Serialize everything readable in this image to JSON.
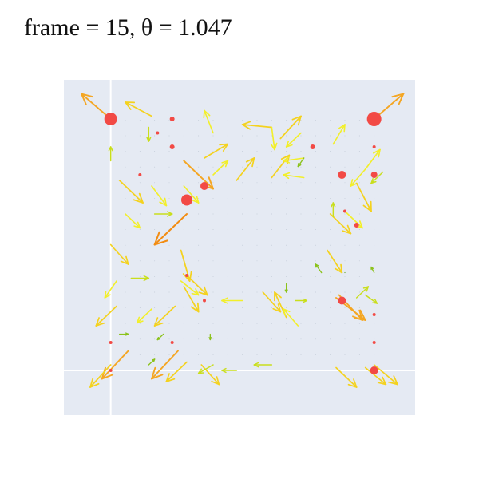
{
  "title": "frame = 15, θ = 1.047",
  "colors": {
    "plot_bg": "#e5eaf3",
    "zero_line": "#ffffff",
    "point": "#f24a45",
    "arrow_scale": [
      "#5aa51c",
      "#8bc21b",
      "#c9de1c",
      "#f2ef2a",
      "#f4d21f",
      "#f4a623",
      "#f28c12"
    ]
  },
  "chart_data": {
    "type": "quiver",
    "title": "frame = 15, θ = 1.047",
    "xlim": [
      -0.16,
      1.04
    ],
    "ylim": [
      -0.16,
      1.04
    ],
    "grid": false,
    "zero_lines": true,
    "points": [
      {
        "x": 0.0,
        "y": 0.9,
        "size": 8
      },
      {
        "x": 0.9,
        "y": 0.9,
        "size": 9
      },
      {
        "x": 0.21,
        "y": 0.9,
        "size": 3
      },
      {
        "x": 0.16,
        "y": 0.85,
        "size": 2
      },
      {
        "x": 0.21,
        "y": 0.8,
        "size": 3
      },
      {
        "x": 0.1,
        "y": 0.7,
        "size": 2
      },
      {
        "x": 0.32,
        "y": 0.66,
        "size": 5
      },
      {
        "x": 0.26,
        "y": 0.61,
        "size": 7
      },
      {
        "x": 0.69,
        "y": 0.8,
        "size": 3
      },
      {
        "x": 0.9,
        "y": 0.8,
        "size": 2
      },
      {
        "x": 0.79,
        "y": 0.7,
        "size": 5
      },
      {
        "x": 0.9,
        "y": 0.7,
        "size": 4
      },
      {
        "x": 0.8,
        "y": 0.57,
        "size": 2
      },
      {
        "x": 0.84,
        "y": 0.52,
        "size": 3
      },
      {
        "x": 0.26,
        "y": 0.34,
        "size": 2
      },
      {
        "x": 0.32,
        "y": 0.25,
        "size": 2
      },
      {
        "x": 0.79,
        "y": 0.25,
        "size": 5
      },
      {
        "x": 0.9,
        "y": 0.2,
        "size": 2
      },
      {
        "x": 0.9,
        "y": 0.1,
        "size": 2
      },
      {
        "x": 0.0,
        "y": 0.1,
        "size": 2
      },
      {
        "x": 0.21,
        "y": 0.1,
        "size": 2
      },
      {
        "x": 0.0,
        "y": 0.0,
        "size": 2
      },
      {
        "x": 0.9,
        "y": 0.0,
        "size": 5
      }
    ],
    "arrows": [
      {
        "x": 0.0,
        "y": 0.9,
        "u": -0.1,
        "v": 0.09
      },
      {
        "x": 0.9,
        "y": 0.9,
        "u": 0.1,
        "v": 0.09
      },
      {
        "x": 0.14,
        "y": 0.91,
        "u": -0.09,
        "v": 0.05
      },
      {
        "x": 0.13,
        "y": 0.87,
        "u": 0.0,
        "v": -0.05
      },
      {
        "x": 0.35,
        "y": 0.85,
        "u": -0.03,
        "v": 0.08
      },
      {
        "x": 0.55,
        "y": 0.87,
        "u": -0.1,
        "v": 0.01
      },
      {
        "x": 0.55,
        "y": 0.87,
        "u": 0.01,
        "v": -0.08
      },
      {
        "x": 0.58,
        "y": 0.83,
        "u": 0.07,
        "v": 0.08
      },
      {
        "x": 0.65,
        "y": 0.85,
        "u": -0.05,
        "v": -0.05
      },
      {
        "x": 0.76,
        "y": 0.81,
        "u": 0.04,
        "v": 0.07
      },
      {
        "x": 0.0,
        "y": 0.75,
        "u": 0.0,
        "v": 0.05
      },
      {
        "x": 0.32,
        "y": 0.76,
        "u": 0.08,
        "v": 0.05
      },
      {
        "x": 0.25,
        "y": 0.75,
        "u": 0.1,
        "v": -0.1
      },
      {
        "x": 0.35,
        "y": 0.7,
        "u": 0.05,
        "v": 0.05
      },
      {
        "x": 0.43,
        "y": 0.68,
        "u": 0.06,
        "v": 0.08
      },
      {
        "x": 0.55,
        "y": 0.69,
        "u": 0.06,
        "v": 0.08
      },
      {
        "x": 0.66,
        "y": 0.76,
        "u": -0.07,
        "v": -0.01
      },
      {
        "x": 0.66,
        "y": 0.76,
        "u": -0.02,
        "v": -0.03
      },
      {
        "x": 0.87,
        "y": 0.72,
        "u": -0.05,
        "v": -0.06
      },
      {
        "x": 0.87,
        "y": 0.72,
        "u": 0.05,
        "v": 0.07
      },
      {
        "x": 0.93,
        "y": 0.71,
        "u": -0.04,
        "v": -0.04
      },
      {
        "x": 0.66,
        "y": 0.69,
        "u": -0.07,
        "v": 0.01
      },
      {
        "x": 0.03,
        "y": 0.68,
        "u": 0.08,
        "v": -0.08
      },
      {
        "x": 0.14,
        "y": 0.66,
        "u": 0.05,
        "v": -0.07
      },
      {
        "x": 0.25,
        "y": 0.66,
        "u": 0.05,
        "v": -0.06
      },
      {
        "x": 0.15,
        "y": 0.56,
        "u": 0.06,
        "v": 0.0
      },
      {
        "x": 0.05,
        "y": 0.56,
        "u": 0.05,
        "v": -0.05
      },
      {
        "x": 0.26,
        "y": 0.56,
        "u": -0.11,
        "v": -0.11
      },
      {
        "x": 0.75,
        "y": 0.56,
        "u": 0.07,
        "v": -0.07
      },
      {
        "x": 0.8,
        "y": 0.57,
        "u": 0.06,
        "v": -0.06
      },
      {
        "x": 0.76,
        "y": 0.55,
        "u": 0.0,
        "v": 0.05
      },
      {
        "x": 0.84,
        "y": 0.67,
        "u": 0.05,
        "v": -0.1
      },
      {
        "x": 0.0,
        "y": 0.45,
        "u": 0.06,
        "v": -0.07
      },
      {
        "x": 0.24,
        "y": 0.43,
        "u": 0.03,
        "v": -0.11
      },
      {
        "x": 0.74,
        "y": 0.43,
        "u": 0.05,
        "v": -0.08
      },
      {
        "x": 0.72,
        "y": 0.35,
        "u": -0.02,
        "v": 0.03
      },
      {
        "x": 0.9,
        "y": 0.35,
        "u": -0.01,
        "v": 0.02
      },
      {
        "x": 0.8,
        "y": 0.35,
        "u": 0.0,
        "v": 0.0
      },
      {
        "x": 0.07,
        "y": 0.33,
        "u": 0.06,
        "v": 0.0
      },
      {
        "x": 0.02,
        "y": 0.32,
        "u": -0.04,
        "v": -0.06
      },
      {
        "x": 0.26,
        "y": 0.34,
        "u": 0.07,
        "v": -0.07
      },
      {
        "x": 0.24,
        "y": 0.32,
        "u": 0.06,
        "v": -0.05
      },
      {
        "x": 0.25,
        "y": 0.3,
        "u": 0.05,
        "v": -0.09
      },
      {
        "x": 0.6,
        "y": 0.31,
        "u": 0.0,
        "v": -0.03
      },
      {
        "x": 0.52,
        "y": 0.28,
        "u": 0.06,
        "v": -0.07
      },
      {
        "x": 0.45,
        "y": 0.25,
        "u": -0.07,
        "v": 0.0
      },
      {
        "x": 0.63,
        "y": 0.25,
        "u": 0.04,
        "v": 0.0
      },
      {
        "x": 0.02,
        "y": 0.23,
        "u": -0.07,
        "v": -0.07
      },
      {
        "x": 0.14,
        "y": 0.22,
        "u": -0.05,
        "v": -0.05
      },
      {
        "x": 0.22,
        "y": 0.23,
        "u": -0.07,
        "v": -0.07
      },
      {
        "x": 0.77,
        "y": 0.26,
        "u": 0.1,
        "v": -0.08
      },
      {
        "x": 0.78,
        "y": 0.27,
        "u": 0.08,
        "v": -0.09
      },
      {
        "x": 0.84,
        "y": 0.26,
        "u": 0.04,
        "v": 0.04
      },
      {
        "x": 0.87,
        "y": 0.27,
        "u": 0.04,
        "v": -0.03
      },
      {
        "x": 0.6,
        "y": 0.19,
        "u": -0.04,
        "v": 0.09
      },
      {
        "x": 0.64,
        "y": 0.16,
        "u": -0.05,
        "v": 0.06
      },
      {
        "x": 0.03,
        "y": 0.13,
        "u": 0.03,
        "v": 0.0
      },
      {
        "x": 0.18,
        "y": 0.13,
        "u": -0.02,
        "v": -0.02
      },
      {
        "x": 0.34,
        "y": 0.13,
        "u": 0.0,
        "v": -0.02
      },
      {
        "x": 0.06,
        "y": 0.07,
        "u": -0.09,
        "v": -0.1
      },
      {
        "x": 0.23,
        "y": 0.07,
        "u": -0.09,
        "v": -0.1
      },
      {
        "x": 0.13,
        "y": 0.02,
        "u": 0.02,
        "v": 0.02
      },
      {
        "x": 0.31,
        "y": 0.02,
        "u": 0.06,
        "v": -0.07
      },
      {
        "x": 0.35,
        "y": 0.02,
        "u": -0.05,
        "v": -0.03
      },
      {
        "x": 0.55,
        "y": 0.02,
        "u": -0.06,
        "v": 0.0
      },
      {
        "x": 0.43,
        "y": 0.0,
        "u": -0.05,
        "v": 0.0
      },
      {
        "x": 0.0,
        "y": 0.02,
        "u": -0.07,
        "v": -0.08
      },
      {
        "x": 0.26,
        "y": 0.03,
        "u": -0.07,
        "v": -0.07
      },
      {
        "x": 0.77,
        "y": 0.01,
        "u": 0.07,
        "v": -0.07
      },
      {
        "x": 0.87,
        "y": 0.01,
        "u": 0.07,
        "v": -0.06
      },
      {
        "x": 0.9,
        "y": 0.02,
        "u": 0.08,
        "v": -0.07
      }
    ]
  }
}
